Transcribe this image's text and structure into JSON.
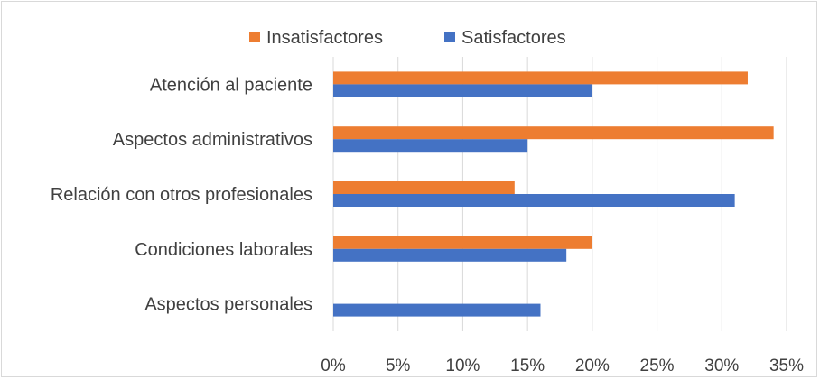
{
  "chart_data": {
    "type": "bar",
    "orientation": "horizontal",
    "title": "",
    "xlabel": "",
    "ylabel": "",
    "categories": [
      "Atención al paciente",
      "Aspectos administrativos",
      "Relación con otros profesionales",
      "Condiciones laborales",
      "Aspectos personales"
    ],
    "series": [
      {
        "name": "Insatisfactores",
        "color": "#ED7D31",
        "values": [
          32,
          34,
          14,
          20,
          0
        ]
      },
      {
        "name": "Satisfactores",
        "color": "#4472C4",
        "values": [
          20,
          15,
          31,
          18,
          16
        ]
      }
    ],
    "xlim": [
      0,
      35
    ],
    "ticks": [
      0,
      5,
      10,
      15,
      20,
      25,
      30,
      35
    ],
    "tick_labels": [
      "0%",
      "5%",
      "10%",
      "15%",
      "20%",
      "25%",
      "30%",
      "35%"
    ],
    "grid": true,
    "legend_position": "top",
    "gridline_color": "#d9d9d9"
  }
}
